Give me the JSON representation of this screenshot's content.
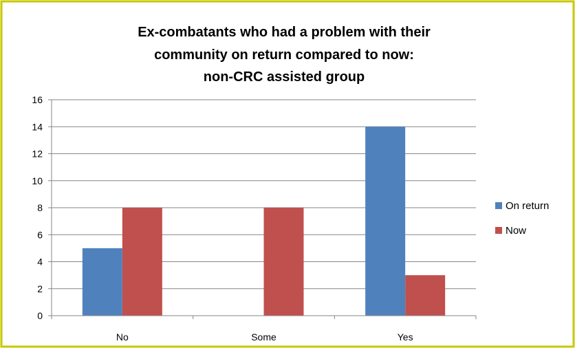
{
  "chart_data": {
    "type": "bar",
    "title": [
      "Ex-combatants who had a problem with their",
      "community on return compared to now:",
      "non-CRC assisted group"
    ],
    "categories": [
      "No",
      "Some",
      "Yes"
    ],
    "series": [
      {
        "name": "On return",
        "values": [
          5,
          0,
          14
        ],
        "color": "#4f81bd"
      },
      {
        "name": "Now",
        "values": [
          8,
          8,
          3
        ],
        "color": "#c0504d"
      }
    ],
    "ylim": [
      0,
      16
    ],
    "yticks": [
      "0",
      "2",
      "4",
      "6",
      "8",
      "10",
      "12",
      "14",
      "16"
    ],
    "grid": true,
    "legend_position": "right",
    "frame_color": "#c8c800"
  }
}
